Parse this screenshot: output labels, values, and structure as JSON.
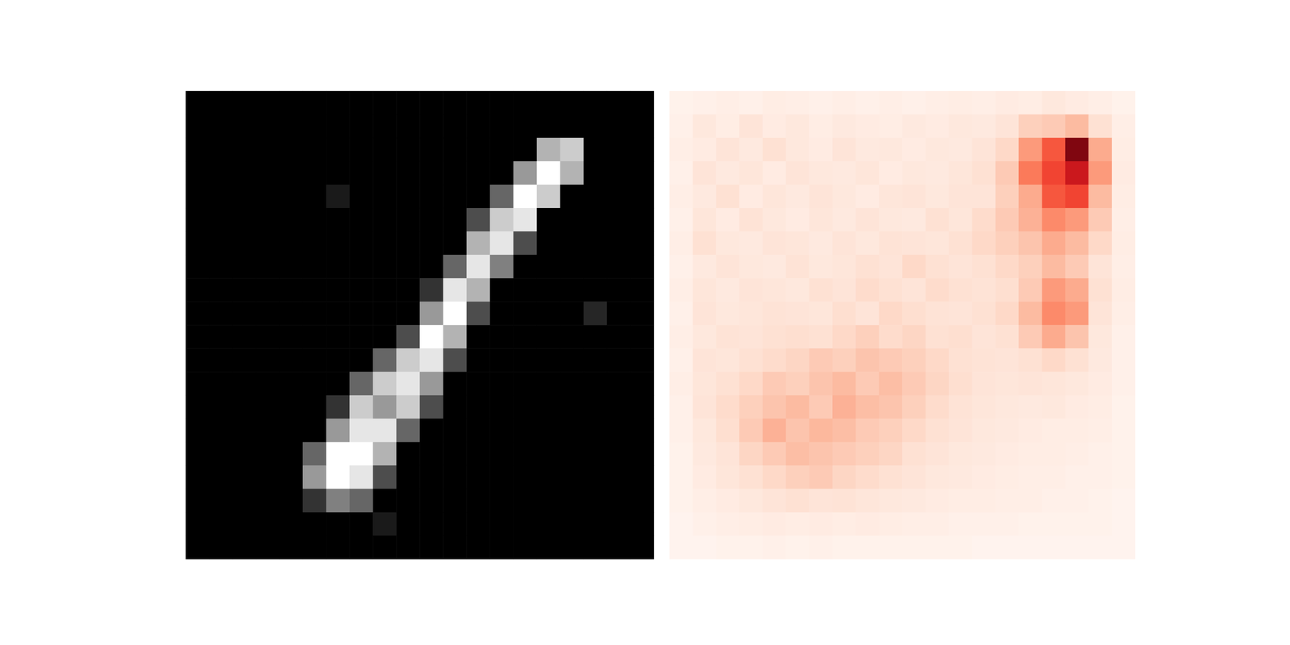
{
  "chart_data": [
    {
      "type": "heatmap",
      "color": "gray",
      "color_range": [
        0,
        1
      ],
      "tick_labels": false,
      "grid": false,
      "cells": [
        [
          0,
          0,
          0,
          0,
          0,
          0,
          0,
          0,
          0,
          0,
          0,
          0,
          0,
          0,
          0,
          0,
          0,
          0,
          0,
          0
        ],
        [
          0,
          0,
          0,
          0,
          0,
          0,
          0,
          0,
          0,
          0,
          0,
          0,
          0,
          0,
          0,
          0,
          0,
          0,
          0,
          0
        ],
        [
          0,
          0,
          0,
          0,
          0,
          0,
          0,
          0,
          0,
          0,
          0,
          0,
          0,
          0,
          0,
          0.7,
          0.8,
          0,
          0,
          0
        ],
        [
          0,
          0,
          0,
          0,
          0,
          0,
          0,
          0,
          0,
          0,
          0,
          0,
          0,
          0,
          0.6,
          1,
          0.7,
          0,
          0,
          0
        ],
        [
          0,
          0,
          0,
          0,
          0,
          0,
          0.1,
          0,
          0,
          0,
          0,
          0,
          0,
          0.4,
          1,
          0.8,
          0,
          0,
          0,
          0
        ],
        [
          0,
          0,
          0,
          0,
          0,
          0,
          0,
          0,
          0,
          0,
          0,
          0,
          0.3,
          0.8,
          0.9,
          0,
          0,
          0,
          0,
          0
        ],
        [
          0,
          0,
          0,
          0,
          0,
          0,
          0,
          0,
          0,
          0,
          0,
          0,
          0.7,
          0.9,
          0.3,
          0,
          0,
          0,
          0,
          0
        ],
        [
          0,
          0,
          0,
          0,
          0,
          0,
          0,
          0,
          0,
          0,
          0,
          0.4,
          0.9,
          0.5,
          0,
          0,
          0,
          0,
          0,
          0
        ],
        [
          0,
          0,
          0,
          0,
          0,
          0,
          0,
          0,
          0,
          0,
          0.2,
          0.9,
          0.7,
          0,
          0,
          0,
          0,
          0,
          0,
          0
        ],
        [
          0,
          0,
          0,
          0,
          0,
          0,
          0,
          0,
          0,
          0,
          0.6,
          1,
          0.3,
          0,
          0,
          0,
          0,
          0.15,
          0,
          0
        ],
        [
          0,
          0,
          0,
          0,
          0,
          0,
          0,
          0,
          0,
          0.3,
          1,
          0.7,
          0,
          0,
          0,
          0,
          0,
          0,
          0,
          0
        ],
        [
          0,
          0,
          0,
          0,
          0,
          0,
          0,
          0,
          0.4,
          0.8,
          0.9,
          0.3,
          0,
          0,
          0,
          0,
          0,
          0,
          0,
          0
        ],
        [
          0,
          0,
          0,
          0,
          0,
          0,
          0,
          0.4,
          0.8,
          0.9,
          0.6,
          0,
          0,
          0,
          0,
          0,
          0,
          0,
          0,
          0
        ],
        [
          0,
          0,
          0,
          0,
          0,
          0,
          0.2,
          0.8,
          0.6,
          0.8,
          0.3,
          0,
          0,
          0,
          0,
          0,
          0,
          0,
          0,
          0
        ],
        [
          0,
          0,
          0,
          0,
          0,
          0,
          0.6,
          0.9,
          0.9,
          0.4,
          0,
          0,
          0,
          0,
          0,
          0,
          0,
          0,
          0,
          0
        ],
        [
          0,
          0,
          0,
          0,
          0,
          0.4,
          1,
          1,
          0.7,
          0,
          0,
          0,
          0,
          0,
          0,
          0,
          0,
          0,
          0,
          0
        ],
        [
          0,
          0,
          0,
          0,
          0,
          0.6,
          1,
          0.9,
          0.3,
          0,
          0,
          0,
          0,
          0,
          0,
          0,
          0,
          0,
          0,
          0
        ],
        [
          0,
          0,
          0,
          0,
          0,
          0.2,
          0.5,
          0.4,
          0,
          0,
          0,
          0,
          0,
          0,
          0,
          0,
          0,
          0,
          0,
          0
        ],
        [
          0,
          0,
          0,
          0,
          0,
          0,
          0,
          0,
          0.1,
          0,
          0,
          0,
          0,
          0,
          0,
          0,
          0,
          0,
          0,
          0
        ],
        [
          0,
          0,
          0,
          0,
          0,
          0,
          0,
          0,
          0,
          0,
          0,
          0,
          0,
          0,
          0,
          0,
          0,
          0,
          0,
          0
        ]
      ]
    },
    {
      "type": "heatmap",
      "color": "Reds",
      "color_range": [
        0,
        1
      ],
      "tick_labels": false,
      "grid": false,
      "cells": [
        [
          0.02,
          0.03,
          0.04,
          0.03,
          0.05,
          0.04,
          0.03,
          0.04,
          0.03,
          0.04,
          0.03,
          0.04,
          0.05,
          0.04,
          0.06,
          0.05,
          0.08,
          0.06,
          0.04,
          0.02
        ],
        [
          0.03,
          0.08,
          0.05,
          0.1,
          0.06,
          0.08,
          0.05,
          0.07,
          0.06,
          0.05,
          0.07,
          0.06,
          0.08,
          0.07,
          0.1,
          0.18,
          0.2,
          0.25,
          0.12,
          0.04
        ],
        [
          0.04,
          0.06,
          0.1,
          0.07,
          0.12,
          0.08,
          0.06,
          0.1,
          0.07,
          0.08,
          0.06,
          0.08,
          0.07,
          0.1,
          0.15,
          0.35,
          0.55,
          0.95,
          0.3,
          0.05
        ],
        [
          0.03,
          0.1,
          0.07,
          0.09,
          0.06,
          0.1,
          0.08,
          0.07,
          0.09,
          0.06,
          0.08,
          0.07,
          0.09,
          0.12,
          0.2,
          0.45,
          0.6,
          0.75,
          0.35,
          0.06
        ],
        [
          0.04,
          0.07,
          0.12,
          0.06,
          0.09,
          0.07,
          0.1,
          0.08,
          0.06,
          0.09,
          0.1,
          0.08,
          0.1,
          0.1,
          0.18,
          0.3,
          0.55,
          0.6,
          0.25,
          0.05
        ],
        [
          0.03,
          0.09,
          0.06,
          0.11,
          0.08,
          0.06,
          0.09,
          0.07,
          0.1,
          0.08,
          0.07,
          0.12,
          0.09,
          0.14,
          0.2,
          0.28,
          0.4,
          0.35,
          0.2,
          0.04
        ],
        [
          0.04,
          0.12,
          0.08,
          0.07,
          0.1,
          0.09,
          0.07,
          0.1,
          0.08,
          0.11,
          0.1,
          0.09,
          0.12,
          0.15,
          0.18,
          0.22,
          0.3,
          0.25,
          0.15,
          0.05
        ],
        [
          0.03,
          0.07,
          0.1,
          0.08,
          0.07,
          0.11,
          0.08,
          0.09,
          0.12,
          0.1,
          0.15,
          0.12,
          0.1,
          0.12,
          0.15,
          0.18,
          0.25,
          0.2,
          0.1,
          0.04
        ],
        [
          0.04,
          0.09,
          0.07,
          0.1,
          0.09,
          0.08,
          0.12,
          0.1,
          0.14,
          0.12,
          0.1,
          0.14,
          0.12,
          0.11,
          0.13,
          0.2,
          0.35,
          0.3,
          0.12,
          0.05
        ],
        [
          0.03,
          0.1,
          0.08,
          0.09,
          0.11,
          0.1,
          0.09,
          0.13,
          0.1,
          0.15,
          0.13,
          0.11,
          0.1,
          0.12,
          0.15,
          0.25,
          0.4,
          0.35,
          0.1,
          0.04
        ],
        [
          0.04,
          0.08,
          0.11,
          0.1,
          0.12,
          0.13,
          0.12,
          0.15,
          0.18,
          0.14,
          0.16,
          0.12,
          0.13,
          0.1,
          0.12,
          0.2,
          0.3,
          0.22,
          0.08,
          0.03
        ],
        [
          0.03,
          0.1,
          0.09,
          0.12,
          0.14,
          0.16,
          0.2,
          0.18,
          0.22,
          0.2,
          0.18,
          0.15,
          0.12,
          0.11,
          0.1,
          0.12,
          0.15,
          0.12,
          0.07,
          0.03
        ],
        [
          0.04,
          0.09,
          0.12,
          0.15,
          0.2,
          0.18,
          0.22,
          0.25,
          0.2,
          0.24,
          0.2,
          0.16,
          0.13,
          0.1,
          0.09,
          0.1,
          0.09,
          0.08,
          0.06,
          0.03
        ],
        [
          0.03,
          0.1,
          0.14,
          0.18,
          0.22,
          0.25,
          0.2,
          0.28,
          0.24,
          0.22,
          0.18,
          0.14,
          0.11,
          0.09,
          0.08,
          0.07,
          0.08,
          0.06,
          0.05,
          0.02
        ],
        [
          0.03,
          0.08,
          0.13,
          0.2,
          0.28,
          0.22,
          0.26,
          0.24,
          0.2,
          0.18,
          0.15,
          0.12,
          0.1,
          0.08,
          0.07,
          0.06,
          0.05,
          0.05,
          0.04,
          0.02
        ],
        [
          0.02,
          0.07,
          0.1,
          0.16,
          0.2,
          0.24,
          0.22,
          0.2,
          0.18,
          0.16,
          0.12,
          0.1,
          0.08,
          0.07,
          0.06,
          0.05,
          0.05,
          0.04,
          0.03,
          0.02
        ],
        [
          0.02,
          0.06,
          0.09,
          0.12,
          0.15,
          0.18,
          0.2,
          0.16,
          0.14,
          0.12,
          0.1,
          0.08,
          0.07,
          0.06,
          0.05,
          0.04,
          0.04,
          0.03,
          0.03,
          0.02
        ],
        [
          0.02,
          0.04,
          0.06,
          0.08,
          0.1,
          0.12,
          0.1,
          0.11,
          0.09,
          0.08,
          0.07,
          0.06,
          0.05,
          0.05,
          0.04,
          0.04,
          0.03,
          0.03,
          0.02,
          0.01
        ],
        [
          0.01,
          0.03,
          0.04,
          0.05,
          0.06,
          0.05,
          0.06,
          0.05,
          0.06,
          0.05,
          0.04,
          0.04,
          0.03,
          0.03,
          0.03,
          0.02,
          0.02,
          0.02,
          0.02,
          0.01
        ],
        [
          0.01,
          0.01,
          0.02,
          0.02,
          0.03,
          0.02,
          0.03,
          0.02,
          0.02,
          0.02,
          0.02,
          0.02,
          0.02,
          0.01,
          0.01,
          0.01,
          0.01,
          0.01,
          0.01,
          0.01
        ]
      ]
    }
  ]
}
